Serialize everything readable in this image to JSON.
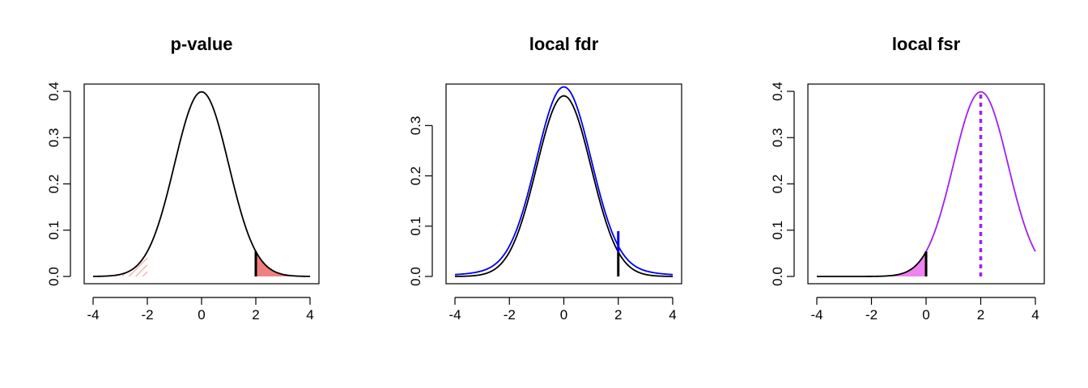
{
  "chart_data": [
    {
      "type": "line",
      "title": "p-value",
      "xlim": [
        -4,
        4
      ],
      "ylim": [
        0,
        0.4
      ],
      "xticks": [
        -4,
        -2,
        0,
        2,
        4
      ],
      "yticks": [
        0.0,
        0.1,
        0.2,
        0.3,
        0.4
      ],
      "xtick_labels": [
        "-4",
        "-2",
        "0",
        "2",
        "4"
      ],
      "ytick_labels": [
        "0.0",
        "0.1",
        "0.2",
        "0.3",
        "0.4"
      ],
      "series": [
        {
          "curve": "normal",
          "mean": 0,
          "sd": 1,
          "color": "#000000"
        }
      ],
      "shaded_regions": [
        {
          "from": -4,
          "to": -2,
          "style": "hatched",
          "color": "#f08080"
        },
        {
          "from": 2,
          "to": 4,
          "style": "solid",
          "color": "#f08080"
        }
      ],
      "vertical_lines": [
        {
          "x": 2,
          "y_to": 0.054,
          "color": "#000000"
        }
      ]
    },
    {
      "type": "line",
      "title": "local fdr",
      "xlim": [
        -4,
        4
      ],
      "ylim": [
        0,
        0.36
      ],
      "xticks": [
        -4,
        -2,
        0,
        2,
        4
      ],
      "yticks": [
        0.0,
        0.1,
        0.2,
        0.3
      ],
      "xtick_labels": [
        "-4",
        "-2",
        "0",
        "2",
        "4"
      ],
      "ytick_labels": [
        "0.0",
        "0.1",
        "0.2",
        "0.3"
      ],
      "series": [
        {
          "curve": "mixture-null",
          "color": "#000000"
        },
        {
          "curve": "mixture-total",
          "color": "#0000ee"
        }
      ],
      "vertical_lines": [
        {
          "x": 2,
          "y_from": 0.0,
          "y_to": 0.048,
          "color": "#000000"
        },
        {
          "x": 2,
          "y_from": 0.048,
          "y_to": 0.09,
          "color": "#0000ee"
        }
      ]
    },
    {
      "type": "line",
      "title": "local fsr",
      "xlim": [
        -4,
        4
      ],
      "ylim": [
        0,
        0.4
      ],
      "xticks": [
        -4,
        -2,
        0,
        2,
        4
      ],
      "yticks": [
        0.0,
        0.1,
        0.2,
        0.3,
        0.4
      ],
      "xtick_labels": [
        "-4",
        "-2",
        "0",
        "2",
        "4"
      ],
      "ytick_labels": [
        "0.0",
        "0.1",
        "0.2",
        "0.3",
        "0.4"
      ],
      "series": [
        {
          "curve": "normal",
          "mean": 2,
          "sd": 1,
          "color": "#a020f0",
          "segment": [
            0,
            4
          ]
        },
        {
          "curve": "normal",
          "mean": 2,
          "sd": 1,
          "color": "#000000",
          "segment": [
            -4,
            0
          ]
        }
      ],
      "shaded_regions": [
        {
          "from": -4,
          "to": 0,
          "style": "solid",
          "color": "#ee82ee"
        }
      ],
      "vertical_lines": [
        {
          "x": 0,
          "y_to": 0.054,
          "color": "#000000"
        },
        {
          "x": 2,
          "y_to": 0.399,
          "color": "#a020f0",
          "dashed": true
        }
      ]
    }
  ]
}
